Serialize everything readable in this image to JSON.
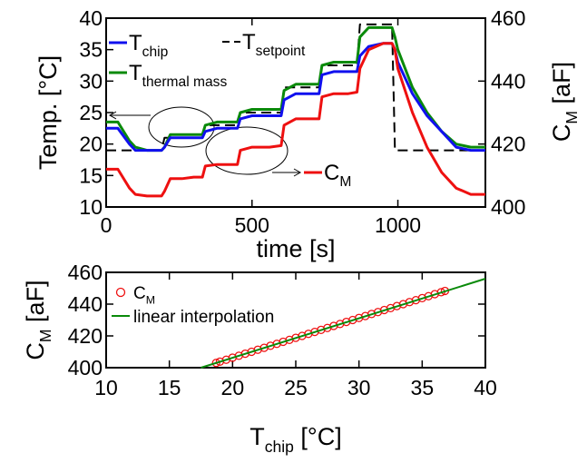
{
  "chart_data": [
    {
      "type": "line",
      "xlabel": "time [s]",
      "ylabel": "Temp. [°C]",
      "y2label": {
        "text": "C",
        "sub": "M",
        "after": " [aF]"
      },
      "xlim": [
        0,
        1300
      ],
      "xticks": [
        0,
        500,
        1000
      ],
      "ylim": [
        10,
        40
      ],
      "yticks": [
        10,
        15,
        20,
        25,
        30,
        35,
        40
      ],
      "y2lim": [
        400,
        460
      ],
      "y2ticks": [
        400,
        420,
        440,
        460
      ],
      "x": [
        0,
        40,
        80,
        100,
        140,
        190,
        200,
        220,
        260,
        300,
        330,
        340,
        380,
        420,
        450,
        460,
        500,
        560,
        600,
        610,
        650,
        700,
        730,
        740,
        780,
        830,
        860,
        870,
        900,
        950,
        980,
        990,
        1000,
        1050,
        1100,
        1150,
        1200,
        1250,
        1300
      ],
      "series": [
        {
          "name": "T",
          "name_sub": "setpoint",
          "color": "#000000",
          "dash": true,
          "values": [
            19,
            19,
            19,
            19,
            19,
            19,
            21,
            21,
            21,
            21,
            21,
            23,
            23,
            23,
            23,
            25,
            25,
            25,
            25,
            29,
            29,
            29,
            29,
            32.5,
            32.5,
            32.5,
            32.5,
            39,
            39,
            39,
            39,
            19,
            19,
            19,
            19,
            19,
            19,
            19,
            19
          ]
        },
        {
          "name": "T",
          "name_sub": "thermal mass",
          "color": "#0a8a0a",
          "dash": false,
          "values": [
            23.5,
            23.5,
            20.5,
            19.5,
            19,
            19,
            19.5,
            21.5,
            21.5,
            21.5,
            21.5,
            23,
            23.5,
            23.5,
            23.5,
            25,
            25.5,
            25.5,
            25.5,
            28.5,
            29.5,
            29.5,
            29.5,
            32.5,
            33,
            33,
            33,
            37,
            38.5,
            38.5,
            38.5,
            37,
            35,
            29,
            25,
            22,
            20,
            19.5,
            19.5
          ]
        },
        {
          "name": "T",
          "name_sub": "chip",
          "color": "#1010ee",
          "dash": false,
          "values": [
            22.5,
            22.5,
            20,
            19,
            19,
            19,
            19.5,
            21,
            21,
            21,
            21,
            22,
            22.5,
            22.5,
            22.5,
            24,
            24.5,
            24.5,
            24.5,
            27,
            28,
            28,
            28,
            31,
            31.5,
            31.5,
            31.5,
            34,
            35.5,
            36,
            36,
            35,
            33,
            28,
            24.5,
            22,
            19.5,
            19,
            19
          ]
        },
        {
          "name": "C",
          "name_sub": "M",
          "color": "#ee1010",
          "dash": false,
          "axis": "y2",
          "values": [
            412,
            412,
            406,
            404,
            403.5,
            403.5,
            405,
            409,
            409,
            409.5,
            409.5,
            413,
            413.5,
            413.5,
            413.5,
            418,
            419,
            419,
            419.5,
            426,
            428,
            428,
            428,
            435,
            436,
            436,
            436.5,
            444,
            450,
            452,
            452,
            450,
            444,
            430,
            419,
            411,
            406,
            404,
            404
          ]
        }
      ]
    },
    {
      "type": "scatter",
      "xlabel": {
        "text": "T",
        "sub": "chip",
        "after": " [°C]"
      },
      "ylabel": {
        "text": "C",
        "sub": "M",
        "after": " [aF]"
      },
      "xlim": [
        10,
        40
      ],
      "xticks": [
        10,
        15,
        20,
        25,
        30,
        35,
        40
      ],
      "ylim": [
        400,
        460
      ],
      "yticks": [
        400,
        420,
        440,
        460
      ],
      "series": [
        {
          "name": "C",
          "name_sub": "M",
          "color": "#ee1010",
          "kind": "marker",
          "x": [
            18.7,
            19,
            19.5,
            20,
            20.5,
            21,
            21.5,
            22,
            22.5,
            23,
            23.5,
            24,
            24.5,
            25,
            25.5,
            26,
            26.5,
            27,
            27.5,
            28,
            28.5,
            29,
            29.5,
            30,
            30.5,
            31,
            31.5,
            32,
            32.5,
            33,
            33.5,
            34,
            34.5,
            35,
            35.5,
            36,
            36.5,
            36.8
          ],
          "values": [
            403,
            403.8,
            405,
            406.3,
            407.5,
            408.8,
            410,
            411.3,
            412.5,
            413.8,
            415,
            416.3,
            417.5,
            418.8,
            420,
            421.3,
            422.5,
            423.8,
            425,
            426.3,
            427.5,
            428.8,
            430,
            431.3,
            432.5,
            433.8,
            435,
            436.3,
            437.5,
            438.8,
            440,
            441.3,
            442.5,
            443.8,
            445,
            446.3,
            447.5,
            448.3
          ]
        },
        {
          "name": "linear interpolation",
          "color": "#0a8a0a",
          "kind": "line",
          "x": [
            17.5,
            40
          ],
          "values": [
            400,
            456
          ]
        }
      ]
    }
  ]
}
